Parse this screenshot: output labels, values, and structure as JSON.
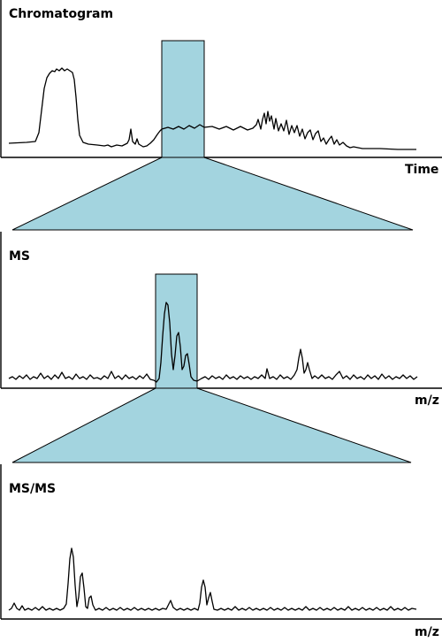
{
  "panels": [
    {
      "title": "Chromatogram",
      "axis_label": "Time"
    },
    {
      "title": "MS",
      "axis_label": "m/z"
    },
    {
      "title": "MS/MS",
      "axis_label": "m/z"
    }
  ],
  "colors": {
    "highlight": "#a3d4df",
    "ink": "#000000",
    "background": "#ffffff"
  }
}
